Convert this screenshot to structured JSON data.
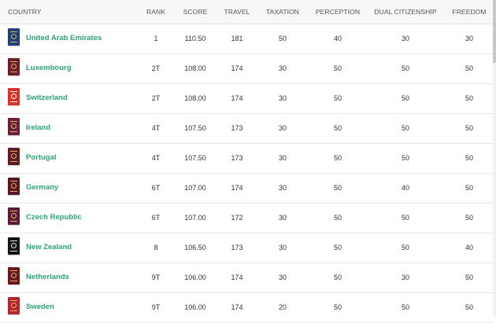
{
  "columns": {
    "country": "COUNTRY",
    "rank": "RANK",
    "score": "SCORE",
    "travel": "TRAVEL",
    "taxation": "TAXATION",
    "perception": "PERCEPTION",
    "dual": "DUAL CITIZENSHIP",
    "freedom": "FREEDOM"
  },
  "rows": [
    {
      "name": "United Arab Emirates",
      "rank": "1",
      "score": "110.50",
      "travel": "181",
      "taxation": "50",
      "perception": "40",
      "dual": "30",
      "freedom": "30",
      "flag_color": "#1f3f78",
      "emblem_color": "#d9b45a"
    },
    {
      "name": "Luxembourg",
      "rank": "2T",
      "score": "108.00",
      "travel": "174",
      "taxation": "30",
      "perception": "50",
      "dual": "50",
      "freedom": "50",
      "flag_color": "#6b1d2a",
      "emblem_color": "#d9b45a"
    },
    {
      "name": "Switzerland",
      "rank": "2T",
      "score": "108.00",
      "travel": "174",
      "taxation": "30",
      "perception": "50",
      "dual": "50",
      "freedom": "50",
      "flag_color": "#d7332b",
      "emblem_color": "#ffffff"
    },
    {
      "name": "Ireland",
      "rank": "4T",
      "score": "107.50",
      "travel": "173",
      "taxation": "30",
      "perception": "50",
      "dual": "50",
      "freedom": "50",
      "flag_color": "#6a1f3c",
      "emblem_color": "#d9b45a"
    },
    {
      "name": "Portugal",
      "rank": "4T",
      "score": "107.50",
      "travel": "173",
      "taxation": "30",
      "perception": "50",
      "dual": "50",
      "freedom": "50",
      "flag_color": "#5e1a26",
      "emblem_color": "#d9b45a"
    },
    {
      "name": "Germany",
      "rank": "6T",
      "score": "107.00",
      "travel": "174",
      "taxation": "30",
      "perception": "50",
      "dual": "40",
      "freedom": "50",
      "flag_color": "#5a1622",
      "emblem_color": "#d9b45a"
    },
    {
      "name": "Czech Republic",
      "rank": "6T",
      "score": "107.00",
      "travel": "172",
      "taxation": "30",
      "perception": "50",
      "dual": "50",
      "freedom": "50",
      "flag_color": "#5c1a3a",
      "emblem_color": "#d9b45a"
    },
    {
      "name": "New Zealand",
      "rank": "8",
      "score": "106.50",
      "travel": "173",
      "taxation": "30",
      "perception": "50",
      "dual": "50",
      "freedom": "40",
      "flag_color": "#141414",
      "emblem_color": "#e0e0e0"
    },
    {
      "name": "Netherlands",
      "rank": "9T",
      "score": "106.00",
      "travel": "174",
      "taxation": "30",
      "perception": "50",
      "dual": "30",
      "freedom": "50",
      "flag_color": "#6b1622",
      "emblem_color": "#d9b45a"
    },
    {
      "name": "Sweden",
      "rank": "9T",
      "score": "106.00",
      "travel": "174",
      "taxation": "20",
      "perception": "50",
      "dual": "50",
      "freedom": "50",
      "flag_color": "#b3242e",
      "emblem_color": "#d9b45a"
    }
  ]
}
